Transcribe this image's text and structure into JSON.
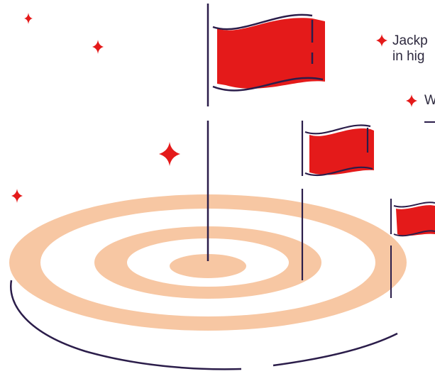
{
  "bullets": [
    {
      "lines": [
        "Jackp",
        "in hig"
      ]
    },
    {
      "lines": [
        "W",
        "–"
      ]
    }
  ],
  "colors": {
    "accent_red": "#e41a1a",
    "ring_peach": "#f7c7a3",
    "outline_navy": "#2b1d4a",
    "text": "#2e2a3f"
  },
  "icons": [
    "sparkle-icon",
    "flag-icon",
    "target-icon",
    "bullet-star-icon"
  ]
}
